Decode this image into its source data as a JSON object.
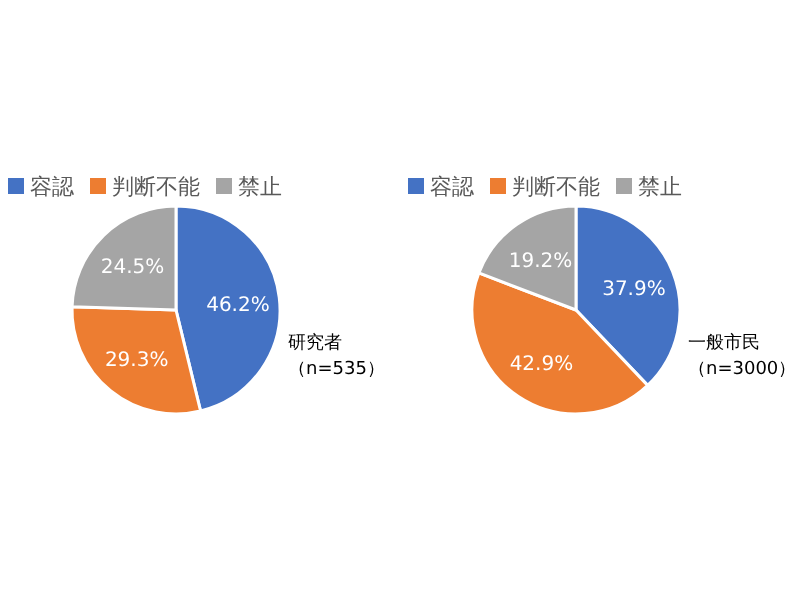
{
  "chart_data": [
    {
      "type": "pie",
      "categories": [
        "容認",
        "判断不能",
        "禁止"
      ],
      "values": [
        46.2,
        29.3,
        24.5
      ],
      "colors": [
        "#4472c4",
        "#ed7d31",
        "#a5a5a5"
      ],
      "value_labels": [
        "46.2%",
        "29.3%",
        "24.5%"
      ],
      "legend": "top",
      "annotations": [
        "研究者",
        "（n=535）"
      ]
    },
    {
      "type": "pie",
      "categories": [
        "容認",
        "判断不能",
        "禁止"
      ],
      "values": [
        37.9,
        42.9,
        19.2
      ],
      "colors": [
        "#4472c4",
        "#ed7d31",
        "#a5a5a5"
      ],
      "value_labels": [
        "37.9%",
        "42.9%",
        "19.2%"
      ],
      "legend": "top",
      "annotations": [
        "一般市民",
        "（n=3000）"
      ]
    }
  ]
}
